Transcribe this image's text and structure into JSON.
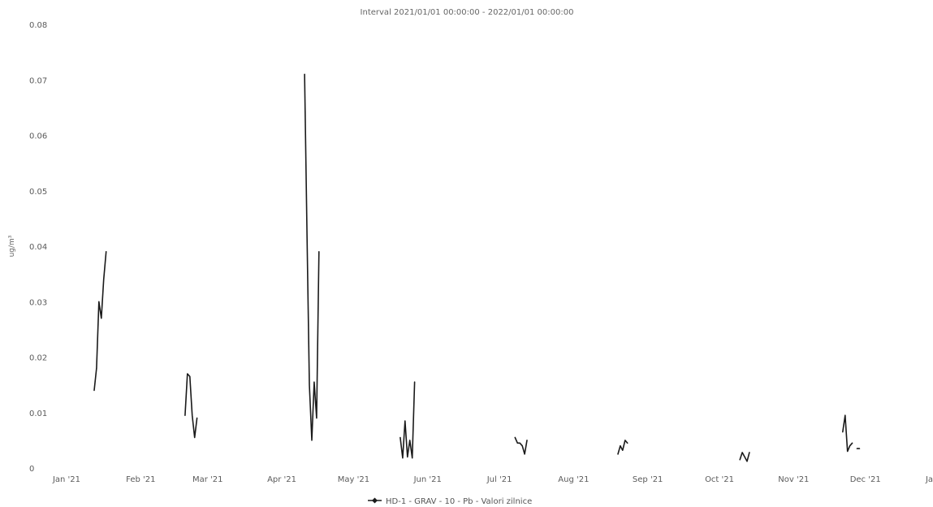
{
  "chart_data": {
    "type": "line",
    "title": "Interval 2021/01/01 00:00:00 - 2022/01/01 00:00:00",
    "ylabel": "ug/m³",
    "xlabel": "",
    "xlim": [
      "2021-01-01",
      "2022-01-01"
    ],
    "ylim": [
      0,
      0.08
    ],
    "grid": false,
    "legend_position": "bottom",
    "y_ticks": [
      "0",
      "0.01",
      "0.02",
      "0.03",
      "0.04",
      "0.05",
      "0.06",
      "0.07",
      "0.08"
    ],
    "x_ticks": [
      "Jan '21",
      "Feb '21",
      "Mar '21",
      "Apr '21",
      "May '21",
      "Jun '21",
      "Jul '21",
      "Aug '21",
      "Sep '21",
      "Oct '21",
      "Nov '21",
      "Dec '21",
      "Jan '22"
    ],
    "series": [
      {
        "name": "HD-1 - GRAV - 10 - Pb - Valori zilnice",
        "color": "#1a1a1a",
        "segments": [
          [
            [
              "2021-01-20",
              0.014
            ],
            [
              "2021-01-21",
              0.018
            ],
            [
              "2021-01-22",
              0.03
            ],
            [
              "2021-01-23",
              0.027
            ],
            [
              "2021-01-24",
              0.034
            ],
            [
              "2021-01-25",
              0.039
            ]
          ],
          [
            [
              "2021-02-27",
              0.0095
            ],
            [
              "2021-02-28",
              0.017
            ],
            [
              "2021-03-01",
              0.0165
            ],
            [
              "2021-03-02",
              0.0095
            ],
            [
              "2021-03-03",
              0.0055
            ],
            [
              "2021-03-04",
              0.009
            ]
          ],
          [
            [
              "2021-04-18",
              0.071
            ],
            [
              "2021-04-19",
              0.042
            ],
            [
              "2021-04-20",
              0.015
            ],
            [
              "2021-04-21",
              0.005
            ],
            [
              "2021-04-22",
              0.0155
            ],
            [
              "2021-04-23",
              0.009
            ],
            [
              "2021-04-24",
              0.039
            ]
          ],
          [
            [
              "2021-05-28",
              0.0055
            ],
            [
              "2021-05-29",
              0.0018
            ],
            [
              "2021-05-30",
              0.0085
            ],
            [
              "2021-05-31",
              0.002
            ],
            [
              "2021-06-01",
              0.005
            ],
            [
              "2021-06-02",
              0.0018
            ],
            [
              "2021-06-03",
              0.0155
            ]
          ],
          [
            [
              "2021-07-15",
              0.0055
            ],
            [
              "2021-07-16",
              0.0045
            ],
            [
              "2021-07-17",
              0.0045
            ],
            [
              "2021-07-18",
              0.004
            ],
            [
              "2021-07-19",
              0.0025
            ],
            [
              "2021-07-20",
              0.005
            ]
          ],
          [
            [
              "2021-08-27",
              0.0025
            ],
            [
              "2021-08-28",
              0.004
            ],
            [
              "2021-08-29",
              0.0032
            ],
            [
              "2021-08-30",
              0.005
            ],
            [
              "2021-08-31",
              0.0045
            ]
          ],
          [
            [
              "2021-10-17",
              0.0015
            ],
            [
              "2021-10-18",
              0.0028
            ],
            [
              "2021-10-19",
              0.002
            ],
            [
              "2021-10-20",
              0.0012
            ],
            [
              "2021-10-21",
              0.0028
            ]
          ],
          [
            [
              "2021-11-29",
              0.0065
            ],
            [
              "2021-11-30",
              0.0095
            ],
            [
              "2021-12-01",
              0.003
            ],
            [
              "2021-12-02",
              0.004
            ],
            [
              "2021-12-03",
              0.0045
            ]
          ],
          [
            [
              "2021-12-05",
              0.0035
            ],
            [
              "2021-12-06",
              0.0035
            ]
          ]
        ]
      }
    ]
  }
}
